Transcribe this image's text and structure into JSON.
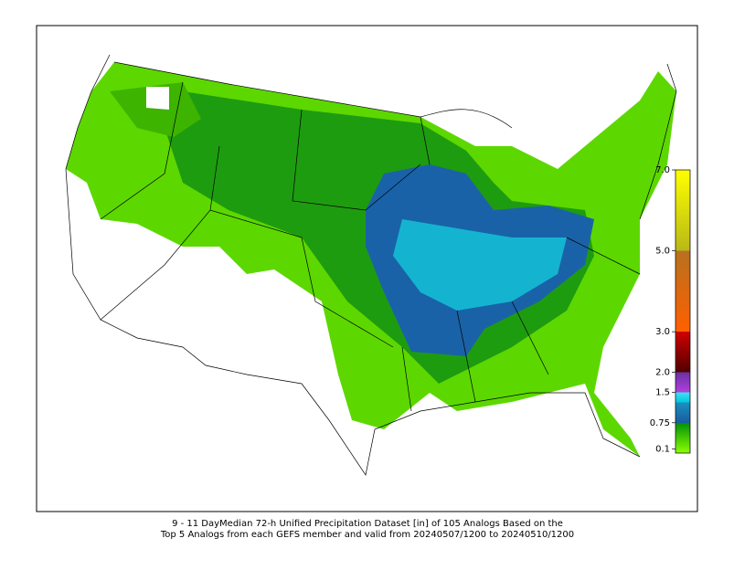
{
  "caption": [
    "9 - 11 DayMedian 72-h Unified Precipitation Dataset [in] of 105 Analogs Based on the",
    "Top 5 Analogs from each GEFS member and valid from 20240507/1200 to 20240510/1200"
  ],
  "colorbar": {
    "ylim": [
      0,
      7
    ],
    "yticks": [
      0.1,
      0.75,
      1.5,
      {
        "value": 2,
        "label": "2.0"
      },
      {
        "value": 3,
        "label": "3.0"
      },
      {
        "value": 5,
        "label": "5.0"
      },
      {
        "value": 7,
        "label": "7.0"
      }
    ],
    "stops": [
      {
        "value": 0,
        "color": "#8cff00"
      },
      {
        "value": 0.75,
        "color": "#00900a"
      },
      {
        "value": 0.75,
        "color": "#1a5c9e"
      },
      {
        "value": 1.25,
        "color": "#1a90c0"
      },
      {
        "value": 1.25,
        "color": "#00c8dc"
      },
      {
        "value": 1.5,
        "color": "#40e0f0"
      },
      {
        "value": 1.5,
        "color": "#b040e0"
      },
      {
        "value": 2,
        "color": "#6a30a0"
      },
      {
        "value": 2,
        "color": "#500000"
      },
      {
        "value": 3,
        "color": "#d00000"
      },
      {
        "value": 3,
        "color": "#ff6000"
      },
      {
        "value": 5,
        "color": "#b87020"
      },
      {
        "value": 5,
        "color": "#b8b818"
      },
      {
        "value": 7,
        "color": "#ffff00"
      }
    ]
  }
}
